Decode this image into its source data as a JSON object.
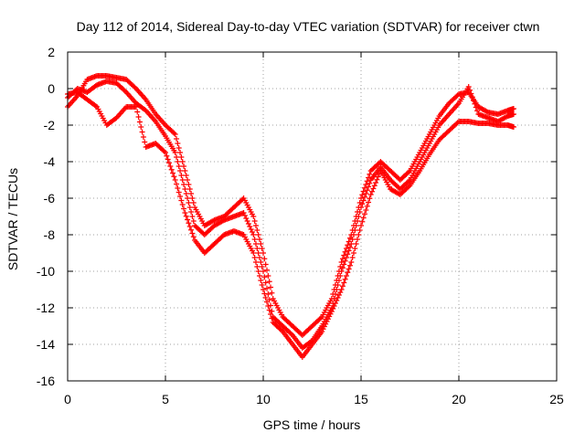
{
  "chart_data": {
    "type": "scatter",
    "title": "Day 112 of 2014, Sidereal Day-to-day VTEC variation (SDTVAR) for receiver ctwn",
    "xlabel": "GPS time / hours",
    "ylabel": "SDTVAR / TECUs",
    "xlim": [
      0,
      25
    ],
    "ylim": [
      -16,
      2
    ],
    "xticks": [
      0,
      5,
      10,
      15,
      20,
      25
    ],
    "yticks": [
      2,
      0,
      -2,
      -4,
      -6,
      -8,
      -10,
      -12,
      -14,
      -16
    ],
    "grid": true,
    "marker": "+",
    "color": "#ff0000",
    "series": [
      {
        "x": [
          0.0,
          0.5,
          1.0,
          1.5,
          2.0,
          2.5,
          3.0,
          3.5,
          4.0,
          4.5,
          5.0,
          5.5,
          6.0,
          6.5,
          7.0,
          7.5,
          8.0,
          8.5,
          9.0,
          9.5,
          10.0,
          10.5,
          11.0,
          11.5,
          12.0,
          12.5,
          13.0,
          13.5,
          14.0,
          14.5,
          15.0,
          15.5,
          16.0,
          16.5,
          17.0,
          17.5,
          18.0,
          18.5,
          19.0,
          19.5,
          20.0,
          20.5,
          21.0,
          21.5,
          22.0,
          22.5,
          22.8
        ],
        "y": [
          -1.0,
          -0.4,
          0.5,
          0.7,
          0.7,
          0.6,
          0.5,
          0.0,
          -0.6,
          -1.4,
          -2.0,
          -2.5,
          -4.5,
          -6.5,
          -7.5,
          -7.2,
          -7.0,
          -6.5,
          -6.0,
          -7.0,
          -9.0,
          -11.5,
          -12.5,
          -13.0,
          -13.5,
          -13.0,
          -12.5,
          -11.5,
          -9.5,
          -8.0,
          -6.0,
          -4.5,
          -4.0,
          -4.5,
          -5.0,
          -4.5,
          -3.5,
          -2.5,
          -1.5,
          -0.8,
          -0.3,
          -0.2,
          -1.0,
          -1.3,
          -1.4,
          -1.2,
          -1.1
        ]
      },
      {
        "x": [
          0.0,
          0.5,
          1.0,
          1.5,
          2.0,
          2.5,
          3.0,
          3.5,
          4.0,
          4.5,
          5.0,
          5.5,
          6.0,
          6.5,
          7.0,
          7.5,
          8.0,
          8.5,
          9.0,
          9.5,
          10.0,
          10.5,
          11.0,
          11.5,
          12.0,
          12.5,
          13.0,
          13.5,
          14.0,
          14.5,
          15.0,
          15.5,
          16.0,
          16.5,
          17.0,
          17.5,
          18.0,
          18.5,
          19.0,
          19.5,
          20.0,
          20.5,
          21.0,
          21.5,
          22.0,
          22.5,
          22.8
        ],
        "y": [
          -0.5,
          0.0,
          -0.2,
          0.2,
          0.4,
          0.3,
          -0.2,
          -0.8,
          -1.2,
          -1.8,
          -2.6,
          -3.5,
          -5.5,
          -7.5,
          -8.0,
          -7.5,
          -7.2,
          -7.0,
          -6.8,
          -8.0,
          -10.0,
          -12.5,
          -13.0,
          -13.5,
          -14.2,
          -13.8,
          -13.0,
          -12.0,
          -10.0,
          -8.5,
          -6.5,
          -5.0,
          -4.3,
          -5.0,
          -5.5,
          -5.0,
          -4.0,
          -3.0,
          -2.0,
          -1.4,
          -0.8,
          0.1,
          -1.4,
          -1.6,
          -1.8,
          -1.5,
          -1.4
        ]
      },
      {
        "x": [
          0.0,
          0.5,
          1.0,
          1.5,
          2.0,
          2.5,
          3.0,
          3.5,
          4.0,
          4.5,
          5.0,
          5.5,
          6.0,
          6.5,
          7.0,
          7.5,
          8.0,
          8.5,
          9.0,
          9.5,
          10.0,
          10.5,
          11.0,
          11.5,
          12.0,
          12.5,
          13.0,
          13.5,
          14.0,
          14.5,
          15.0,
          15.5,
          16.0,
          16.5,
          17.0,
          17.5,
          18.0,
          18.5,
          19.0,
          19.5,
          20.0,
          20.5,
          21.0,
          21.5,
          22.0,
          22.5,
          22.8
        ],
        "y": [
          -0.3,
          -0.2,
          -0.6,
          -1.0,
          -2.0,
          -1.6,
          -1.0,
          -1.0,
          -3.2,
          -3.0,
          -3.5,
          -5.0,
          -6.8,
          -8.3,
          -9.0,
          -8.5,
          -8.0,
          -7.8,
          -8.0,
          -9.0,
          -11.0,
          -12.8,
          -13.3,
          -14.0,
          -14.7,
          -14.0,
          -13.3,
          -12.2,
          -11.0,
          -9.5,
          -7.5,
          -5.8,
          -4.5,
          -5.5,
          -5.8,
          -5.3,
          -4.5,
          -3.6,
          -2.8,
          -2.3,
          -1.8,
          -1.8,
          -1.9,
          -1.9,
          -2.0,
          -2.0,
          -2.1
        ]
      }
    ]
  }
}
